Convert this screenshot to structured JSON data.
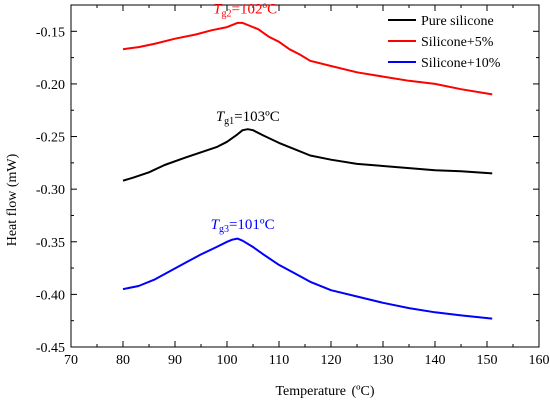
{
  "chart_data": {
    "type": "line",
    "xlabel_main": "Temperature",
    "xlabel_unit": "(ºC)",
    "ylabel": "Heat flow (mW)",
    "xlim": [
      70,
      160
    ],
    "ylim": [
      -0.45,
      -0.125
    ],
    "x_ticks": [
      "70",
      "80",
      "90",
      "100",
      "110",
      "120",
      "130",
      "140",
      "150",
      "160"
    ],
    "y_ticks": [
      "-0.15",
      "-0.20",
      "-0.25",
      "-0.30",
      "-0.35",
      "-0.40",
      "-0.45"
    ],
    "legend_position": "top-right",
    "series": [
      {
        "name": "Pure silicone",
        "color": "#000000",
        "points": [
          [
            80,
            -0.292
          ],
          [
            82,
            -0.289
          ],
          [
            85,
            -0.284
          ],
          [
            88,
            -0.277
          ],
          [
            92,
            -0.27
          ],
          [
            95,
            -0.265
          ],
          [
            98,
            -0.26
          ],
          [
            100,
            -0.255
          ],
          [
            102,
            -0.248
          ],
          [
            103,
            -0.244
          ],
          [
            104,
            -0.243
          ],
          [
            105,
            -0.244
          ],
          [
            107,
            -0.249
          ],
          [
            110,
            -0.256
          ],
          [
            113,
            -0.262
          ],
          [
            116,
            -0.268
          ],
          [
            120,
            -0.272
          ],
          [
            125,
            -0.276
          ],
          [
            130,
            -0.278
          ],
          [
            135,
            -0.28
          ],
          [
            140,
            -0.282
          ],
          [
            145,
            -0.283
          ],
          [
            151,
            -0.285
          ]
        ]
      },
      {
        "name": "Silicone+5%",
        "color": "#ff0000",
        "points": [
          [
            80,
            -0.167
          ],
          [
            83,
            -0.165
          ],
          [
            86,
            -0.162
          ],
          [
            90,
            -0.157
          ],
          [
            94,
            -0.153
          ],
          [
            97,
            -0.149
          ],
          [
            100,
            -0.146
          ],
          [
            102,
            -0.142
          ],
          [
            103,
            -0.142
          ],
          [
            104,
            -0.144
          ],
          [
            106,
            -0.148
          ],
          [
            108,
            -0.155
          ],
          [
            110,
            -0.16
          ],
          [
            112,
            -0.167
          ],
          [
            114,
            -0.172
          ],
          [
            116,
            -0.178
          ],
          [
            120,
            -0.183
          ],
          [
            125,
            -0.189
          ],
          [
            130,
            -0.193
          ],
          [
            135,
            -0.197
          ],
          [
            140,
            -0.2
          ],
          [
            145,
            -0.205
          ],
          [
            151,
            -0.21
          ]
        ]
      },
      {
        "name": "Silicone+10%",
        "color": "#0000ff",
        "points": [
          [
            80,
            -0.395
          ],
          [
            83,
            -0.392
          ],
          [
            86,
            -0.386
          ],
          [
            89,
            -0.378
          ],
          [
            92,
            -0.37
          ],
          [
            95,
            -0.362
          ],
          [
            98,
            -0.355
          ],
          [
            100,
            -0.35
          ],
          [
            101,
            -0.348
          ],
          [
            102,
            -0.347
          ],
          [
            103,
            -0.349
          ],
          [
            105,
            -0.355
          ],
          [
            107,
            -0.362
          ],
          [
            110,
            -0.372
          ],
          [
            113,
            -0.38
          ],
          [
            116,
            -0.388
          ],
          [
            120,
            -0.396
          ],
          [
            125,
            -0.402
          ],
          [
            130,
            -0.408
          ],
          [
            135,
            -0.413
          ],
          [
            140,
            -0.417
          ],
          [
            145,
            -0.42
          ],
          [
            151,
            -0.423
          ]
        ]
      }
    ],
    "annotations": [
      {
        "symbol": "T",
        "subscript": "g2",
        "value": "=102ºC",
        "color": "#ff0000",
        "x": 103.5,
        "y": -0.133
      },
      {
        "symbol": "T",
        "subscript": "g1",
        "value": "=103ºC",
        "color": "#000000",
        "x": 104,
        "y": -0.235
      },
      {
        "symbol": "T",
        "subscript": "g3",
        "value": "=101ºC",
        "color": "#0000ff",
        "x": 103,
        "y": -0.338
      }
    ]
  }
}
